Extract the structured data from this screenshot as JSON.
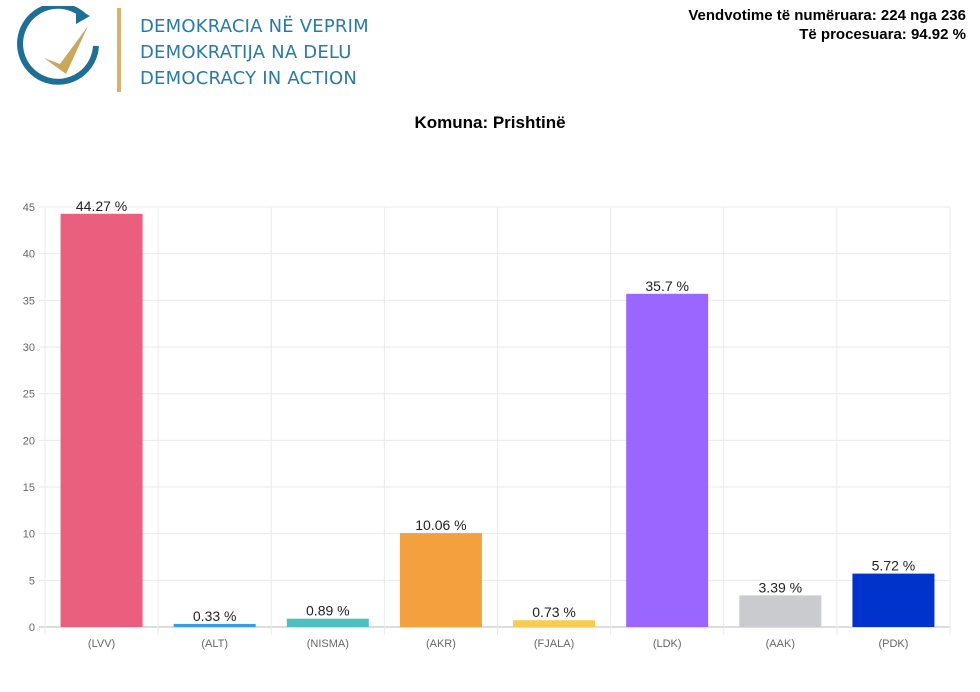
{
  "header": {
    "org_lines": [
      "DEMOKRACIA NË VEPRIM",
      "DEMOKRATIJA NA DELU",
      "DEMOCRACY IN ACTION"
    ],
    "stats": [
      "Vendvotime të numëruara: 224 nga 236",
      "Të procesuara: 94.92 %"
    ]
  },
  "chart_data": {
    "type": "bar",
    "title": "Komuna: Prishtinë",
    "categories": [
      "(LVV)",
      "(ALT)",
      "(NISMA)",
      "(AKR)",
      "(FJALA)",
      "(LDK)",
      "(AAK)",
      "(PDK)"
    ],
    "values": [
      44.27,
      0.33,
      0.89,
      10.06,
      0.73,
      35.7,
      3.39,
      5.72
    ],
    "data_labels": [
      "44.27 %",
      "0.33 %",
      "0.89 %",
      "10.06 %",
      "0.73 %",
      "35.7 %",
      "3.39 %",
      "5.72 %"
    ],
    "colors": [
      "#ea5e7e",
      "#3a9be8",
      "#4cc0c0",
      "#f3a03e",
      "#f7cc50",
      "#9966ff",
      "#c9cbcf",
      "#0033cc"
    ],
    "ylim": [
      0,
      45
    ],
    "yticks": [
      0,
      5,
      10,
      15,
      20,
      25,
      30,
      35,
      40,
      45
    ],
    "grid": true,
    "xlabel": "",
    "ylabel": ""
  }
}
